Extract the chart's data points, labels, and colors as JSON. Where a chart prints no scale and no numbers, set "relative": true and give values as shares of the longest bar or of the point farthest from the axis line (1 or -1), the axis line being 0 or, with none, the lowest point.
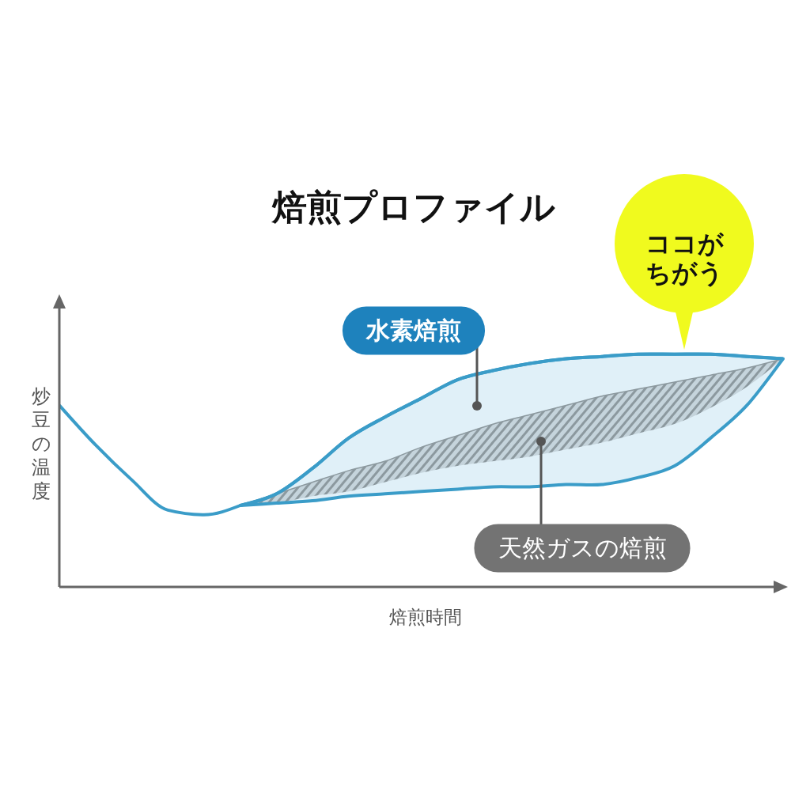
{
  "chart_data": {
    "type": "line",
    "title": "焙煎プロファイル",
    "xlabel": "焙煎時間",
    "ylabel": "炒豆の温度",
    "relative": true,
    "categories": [
      null,
      null,
      null,
      null,
      null,
      null,
      null,
      null,
      null,
      null,
      null,
      null,
      null,
      null,
      null,
      null,
      null,
      null,
      null,
      null,
      null
    ],
    "annotations": [
      "ココがちがう"
    ],
    "series": [
      {
        "color": "#3a9cc8",
        "values": [
          0.78,
          0.61,
          0.46,
          0.33,
          0.31,
          0.35,
          null,
          null,
          null,
          null,
          null,
          null,
          null,
          null,
          null,
          null,
          null,
          null,
          null,
          null,
          null
        ]
      },
      {
        "name": "水素焙煎",
        "color": "#3a9cc8",
        "values": [
          null,
          null,
          null,
          null,
          null,
          0.35,
          0.4,
          0.51,
          0.64,
          0.73,
          0.81,
          0.89,
          0.93,
          0.96,
          0.98,
          0.99,
          1.0,
          1.0,
          1.0,
          0.99,
          0.98
        ],
        "upper": [
          null,
          null,
          null,
          null,
          null,
          0.35,
          0.4,
          0.51,
          0.64,
          0.73,
          0.81,
          0.89,
          0.93,
          0.96,
          0.98,
          0.99,
          1.0,
          1.0,
          1.0,
          0.99,
          0.98
        ],
        "lower": [
          null,
          null,
          null,
          null,
          null,
          0.35,
          0.36,
          0.37,
          0.39,
          0.4,
          0.41,
          0.42,
          0.43,
          0.43,
          0.44,
          0.44,
          0.47,
          0.52,
          0.64,
          0.78,
          0.98
        ]
      },
      {
        "name": "天然ガスの焙煎",
        "color": "#8c999f",
        "values": [
          null,
          null,
          null,
          null,
          null,
          0.35,
          0.4,
          0.45,
          0.5,
          0.54,
          0.6,
          0.65,
          0.7,
          0.74,
          0.78,
          0.82,
          0.85,
          0.88,
          0.91,
          0.94,
          0.98
        ],
        "upper": [
          null,
          null,
          null,
          null,
          null,
          0.35,
          0.4,
          0.45,
          0.5,
          0.54,
          0.6,
          0.65,
          0.7,
          0.74,
          0.78,
          0.82,
          0.85,
          0.88,
          0.91,
          0.94,
          0.98
        ],
        "lower": [
          null,
          null,
          null,
          null,
          null,
          0.35,
          0.36,
          0.39,
          0.41,
          0.45,
          0.49,
          0.52,
          0.54,
          0.56,
          0.59,
          0.62,
          0.66,
          0.7,
          0.77,
          0.86,
          0.98
        ]
      }
    ]
  }
}
